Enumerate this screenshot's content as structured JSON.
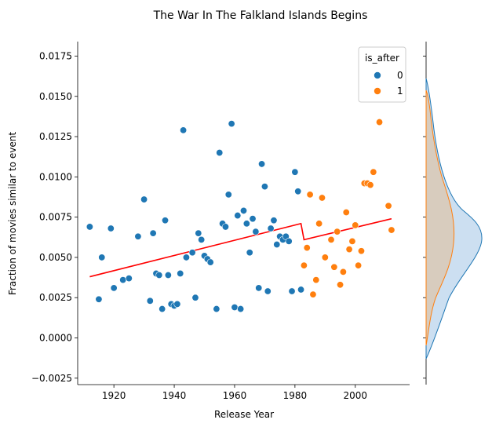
{
  "chart_data": {
    "type": "scatter",
    "title": "The War In The Falkland Islands Begins",
    "xlabel": "Release Year",
    "ylabel": "Fraction of movies similar to event",
    "xlim": [
      1908,
      2018
    ],
    "ylim": [
      -0.0029,
      0.0184
    ],
    "x_ticks": [
      1920,
      1940,
      1960,
      1980,
      2000
    ],
    "y_ticks": [
      -0.0025,
      0.0,
      0.0025,
      0.005,
      0.0075,
      0.01,
      0.0125,
      0.015,
      0.0175
    ],
    "y_tick_labels": [
      "−0.0025",
      "0.0000",
      "0.0025",
      "0.0050",
      "0.0075",
      "0.0100",
      "0.0125",
      "0.0150",
      "0.0175"
    ],
    "grid": false,
    "legend": {
      "title": "is_after",
      "placement": "top-right",
      "entries": [
        {
          "label": "0",
          "color": "#1f77b4"
        },
        {
          "label": "1",
          "color": "#ff7f0e"
        }
      ]
    },
    "series": [
      {
        "name": "0",
        "color": "#1f77b4",
        "points": [
          [
            1912,
            0.0069
          ],
          [
            1915,
            0.0024
          ],
          [
            1916,
            0.005
          ],
          [
            1919,
            0.0068
          ],
          [
            1920,
            0.0031
          ],
          [
            1923,
            0.0036
          ],
          [
            1925,
            0.0037
          ],
          [
            1928,
            0.0063
          ],
          [
            1930,
            0.0086
          ],
          [
            1932,
            0.0023
          ],
          [
            1933,
            0.0065
          ],
          [
            1934,
            0.004
          ],
          [
            1935,
            0.0039
          ],
          [
            1936,
            0.0018
          ],
          [
            1937,
            0.0073
          ],
          [
            1938,
            0.0039
          ],
          [
            1939,
            0.0021
          ],
          [
            1940,
            0.002
          ],
          [
            1941,
            0.0021
          ],
          [
            1942,
            0.004
          ],
          [
            1943,
            0.0129
          ],
          [
            1944,
            0.005
          ],
          [
            1946,
            0.0053
          ],
          [
            1947,
            0.0025
          ],
          [
            1948,
            0.0065
          ],
          [
            1949,
            0.0061
          ],
          [
            1950,
            0.0051
          ],
          [
            1951,
            0.0049
          ],
          [
            1952,
            0.0047
          ],
          [
            1954,
            0.0018
          ],
          [
            1955,
            0.0115
          ],
          [
            1956,
            0.0071
          ],
          [
            1957,
            0.0069
          ],
          [
            1958,
            0.0089
          ],
          [
            1959,
            0.0133
          ],
          [
            1960,
            0.0019
          ],
          [
            1961,
            0.0076
          ],
          [
            1962,
            0.0018
          ],
          [
            1963,
            0.0079
          ],
          [
            1964,
            0.0071
          ],
          [
            1965,
            0.0053
          ],
          [
            1966,
            0.0074
          ],
          [
            1967,
            0.0066
          ],
          [
            1968,
            0.0031
          ],
          [
            1969,
            0.0108
          ],
          [
            1970,
            0.0094
          ],
          [
            1971,
            0.0029
          ],
          [
            1972,
            0.0068
          ],
          [
            1973,
            0.0073
          ],
          [
            1974,
            0.0058
          ],
          [
            1975,
            0.0063
          ],
          [
            1976,
            0.0061
          ],
          [
            1977,
            0.0063
          ],
          [
            1978,
            0.006
          ],
          [
            1979,
            0.0029
          ],
          [
            1980,
            0.0103
          ],
          [
            1981,
            0.0091
          ],
          [
            1982,
            0.003
          ]
        ]
      },
      {
        "name": "1",
        "color": "#ff7f0e",
        "points": [
          [
            1983,
            0.0045
          ],
          [
            1984,
            0.0056
          ],
          [
            1985,
            0.0089
          ],
          [
            1986,
            0.0027
          ],
          [
            1987,
            0.0036
          ],
          [
            1988,
            0.0071
          ],
          [
            1989,
            0.0087
          ],
          [
            1990,
            0.005
          ],
          [
            1992,
            0.0061
          ],
          [
            1993,
            0.0044
          ],
          [
            1994,
            0.0066
          ],
          [
            1995,
            0.0033
          ],
          [
            1996,
            0.0041
          ],
          [
            1997,
            0.0078
          ],
          [
            1998,
            0.0055
          ],
          [
            1999,
            0.006
          ],
          [
            2000,
            0.007
          ],
          [
            2001,
            0.0045
          ],
          [
            2002,
            0.0054
          ],
          [
            2003,
            0.0096
          ],
          [
            2004,
            0.0096
          ],
          [
            2005,
            0.0095
          ],
          [
            2006,
            0.0103
          ],
          [
            2008,
            0.0134
          ],
          [
            2011,
            0.0082
          ],
          [
            2012,
            0.0067
          ]
        ]
      }
    ],
    "fit_lines": [
      {
        "color": "#ff0000",
        "x": [
          1912,
          1982
        ],
        "y": [
          0.0038,
          0.0071
        ]
      },
      {
        "color": "#ff0000",
        "x": [
          1983,
          2012
        ],
        "y": [
          0.0061,
          0.0074
        ]
      }
    ],
    "marginal_density": {
      "orientation": "vertical-right",
      "series": [
        {
          "name": "0",
          "color": "#1f77b4",
          "fill": "#c6dbef"
        },
        {
          "name": "1",
          "color": "#ff7f0e",
          "fill": "#d9c9b5"
        }
      ]
    }
  }
}
